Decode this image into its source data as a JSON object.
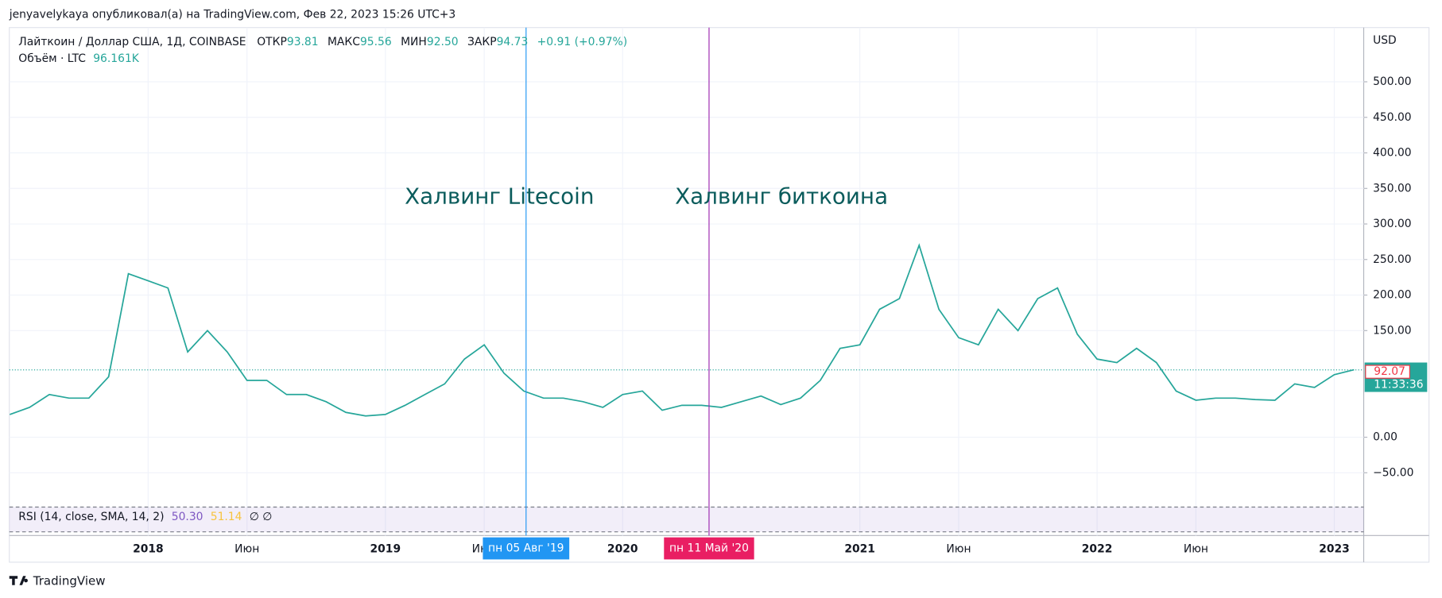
{
  "header": {
    "publisher": "jenyavelykaya опубликовал(а) на TradingView.com, Фев 22, 2023 15:26 UTC+3"
  },
  "legend": {
    "symbol": "Лайткоин / Доллар США, 1Д, COINBASE",
    "open_label": "ОТКР",
    "open": 93.81,
    "high_label": "МАКС",
    "high": 95.56,
    "low_label": "МИН",
    "low": 92.5,
    "low_text": "92.50",
    "close_label": "ЗАКР",
    "close": 94.73,
    "change": "+0.91 (+0.97%)",
    "volume_label": "Объём · LTC",
    "volume": "96.161K",
    "rsi": "RSI (14, close, SMA, 14, 2)",
    "rsi_value": 50.3,
    "rsi_value_text": "50.30",
    "rsi_sma": 51.14,
    "rsi_extra": "∅  ∅"
  },
  "annotations": [
    "Халвинг Litecoin",
    "Халвинг биткоина"
  ],
  "markers": [
    "пн 05 Авг '19",
    "пн 11 Май '20"
  ],
  "chart_data": {
    "type": "line",
    "currency": "USD",
    "color": "#26a69a",
    "categories": [
      null,
      null,
      null,
      null,
      null,
      null,
      null,
      "2018",
      null,
      null,
      null,
      null,
      "Июн",
      null,
      null,
      null,
      null,
      null,
      null,
      "2019",
      null,
      null,
      null,
      null,
      "Июн",
      null,
      null,
      null,
      null,
      null,
      null,
      "2020",
      null,
      null,
      null,
      null,
      null,
      null,
      null,
      null,
      null,
      null,
      null,
      "2021",
      null,
      null,
      null,
      null,
      "Июн",
      null,
      null,
      null,
      null,
      null,
      null,
      "2022",
      null,
      null,
      null,
      null,
      "Июн",
      null,
      null,
      null,
      null,
      null,
      null,
      "2023",
      null
    ],
    "series": [
      {
        "name": "LTC/USD",
        "color": "#26a69a",
        "values": [
          32,
          42,
          60,
          55,
          55,
          85,
          230,
          220,
          210,
          120,
          150,
          120,
          80,
          80,
          60,
          60,
          50,
          35,
          30,
          32,
          45,
          60,
          75,
          110,
          130,
          90,
          65,
          55,
          55,
          50,
          42,
          60,
          65,
          38,
          45,
          45,
          42,
          50,
          58,
          46,
          55,
          80,
          125,
          130,
          180,
          195,
          270,
          180,
          140,
          130,
          180,
          150,
          195,
          210,
          145,
          110,
          105,
          125,
          105,
          65,
          52,
          55,
          55,
          53,
          52,
          75,
          70,
          88,
          95
        ]
      }
    ],
    "ylim": [
      -138.3,
      576.3
    ],
    "yticks": [
      {
        "value": 500,
        "label": "500.00"
      },
      {
        "value": 450,
        "label": "450.00"
      },
      {
        "value": 400,
        "label": "400.00"
      },
      {
        "value": 350,
        "label": "350.00"
      },
      {
        "value": 300,
        "label": "300.00"
      },
      {
        "value": 250,
        "label": "250.00"
      },
      {
        "value": 200,
        "label": "200.00"
      },
      {
        "value": 150,
        "label": "150.00"
      },
      {
        "value": 0,
        "label": "0.00"
      },
      {
        "value": -50,
        "label": "−50.00"
      }
    ],
    "last_price": 94.73,
    "countdown": "11:33:36",
    "prev_close": 92.07,
    "grid": true
  },
  "footer": {
    "logo": "TradingView"
  }
}
